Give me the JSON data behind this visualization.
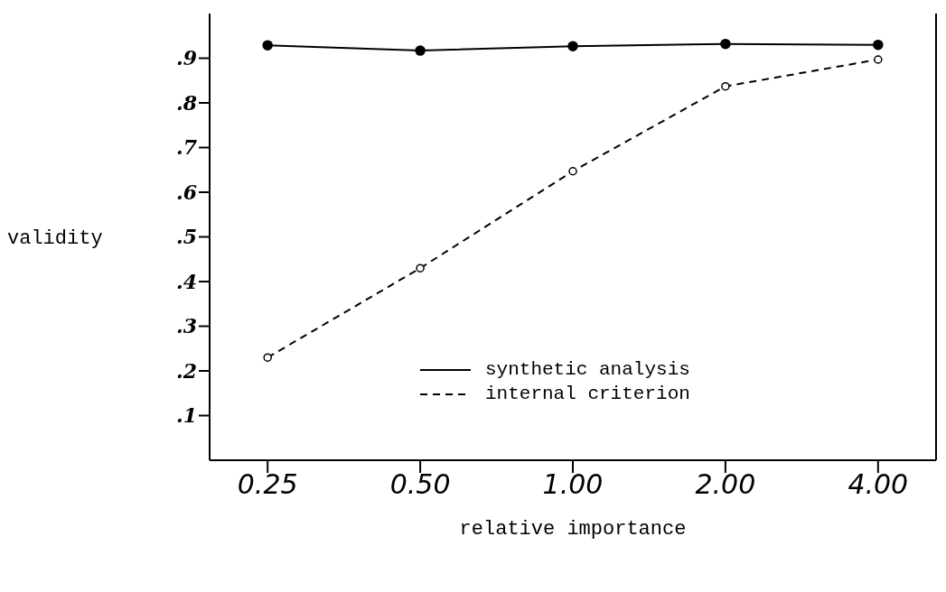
{
  "chart_data": {
    "type": "line",
    "xlabel": "relative importance",
    "ylabel": "validity",
    "categories": [
      "0.25",
      "0.50",
      "1.00",
      "2.00",
      "4.00"
    ],
    "series": [
      {
        "name": "synthetic analysis",
        "color": "#000000",
        "line_style": "solid",
        "values": [
          0.929,
          0.917,
          0.927,
          0.932,
          0.93
        ]
      },
      {
        "name": "internal criterion",
        "color": "#000000",
        "line_style": "dashed",
        "values": [
          0.23,
          0.43,
          0.647,
          0.837,
          0.897
        ]
      }
    ],
    "ylim": [
      0,
      1
    ],
    "yticks": [
      {
        "value": 0.1,
        "label": ".1"
      },
      {
        "value": 0.2,
        "label": ".2"
      },
      {
        "value": 0.3,
        "label": ".3"
      },
      {
        "value": 0.4,
        "label": ".4"
      },
      {
        "value": 0.5,
        "label": ".5"
      },
      {
        "value": 0.6,
        "label": ".6"
      },
      {
        "value": 0.7,
        "label": ".7"
      },
      {
        "value": 0.8,
        "label": ".8"
      },
      {
        "value": 0.9,
        "label": ".9"
      }
    ],
    "marker": "circle",
    "grid": false,
    "legend": "bottom right"
  }
}
